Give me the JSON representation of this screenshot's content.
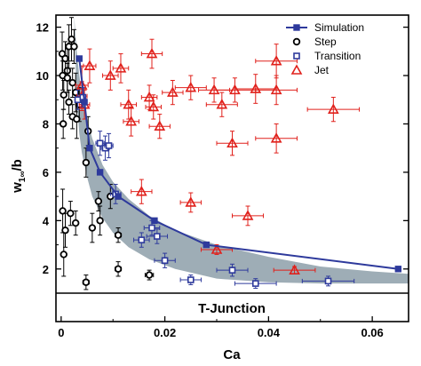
{
  "chart_data": {
    "type": "scatter",
    "xlabel": "Ca",
    "ylabel": "w",
    "ylabel_sub": "1∞",
    "ylabel_tail": "/b",
    "xlim": [
      -0.001,
      0.067
    ],
    "ylim": [
      1,
      12.5
    ],
    "x_ticks": [
      0,
      0.02,
      0.04,
      0.06
    ],
    "x_tick_labels": [
      "0",
      "0.02",
      "0.04",
      "0.06"
    ],
    "y_ticks": [
      2,
      4,
      6,
      8,
      10,
      12
    ],
    "y_tick_labels": [
      "2",
      "4",
      "6",
      "8",
      "10",
      "12"
    ],
    "lower_band_label": "T-Junction",
    "legend_position": "top-right",
    "shaded_band": {
      "x": [
        0.0025,
        0.003,
        0.0035,
        0.004,
        0.005,
        0.006,
        0.008,
        0.01,
        0.013,
        0.017,
        0.022,
        0.03,
        0.04,
        0.05,
        0.06,
        0.067
      ],
      "upper": [
        12.5,
        11.0,
        10.0,
        9.3,
        8.2,
        7.4,
        6.3,
        5.6,
        4.9,
        4.2,
        3.6,
        3.0,
        2.5,
        2.1,
        1.9,
        1.8
      ],
      "lower": [
        12.5,
        9.0,
        7.6,
        6.8,
        5.8,
        5.0,
        4.1,
        3.5,
        2.9,
        2.4,
        2.0,
        1.6,
        1.45,
        1.4,
        1.4,
        1.4
      ]
    },
    "series": [
      {
        "name": "Simulation",
        "marker": "filled-square-line",
        "color": "#2e3a9c",
        "points": [
          [
            0.0035,
            10.7
          ],
          [
            0.0045,
            8.9
          ],
          [
            0.0055,
            7.0
          ],
          [
            0.0075,
            6.0
          ],
          [
            0.011,
            5.0
          ],
          [
            0.018,
            4.0
          ],
          [
            0.028,
            3.0
          ],
          [
            0.065,
            2.0
          ]
        ]
      },
      {
        "name": "Step",
        "marker": "open-circle",
        "color": "#000000",
        "points": [
          {
            "x": 0.0002,
            "y": 10.9,
            "xerr": 0.0004,
            "yerr": 0.9
          },
          {
            "x": 0.0008,
            "y": 10.7,
            "xerr": 0.0004,
            "yerr": 0.7
          },
          {
            "x": 0.0003,
            "y": 10.0,
            "xerr": 0.0004,
            "yerr": 0.6
          },
          {
            "x": 0.0012,
            "y": 10.2,
            "xerr": 0.0004,
            "yerr": 0.9
          },
          {
            "x": 0.0015,
            "y": 11.2,
            "xerr": 0.0004,
            "yerr": 0.9
          },
          {
            "x": 0.002,
            "y": 11.5,
            "xerr": 0.0004,
            "yerr": 0.9
          },
          {
            "x": 0.0025,
            "y": 11.2,
            "xerr": 0.0004,
            "yerr": 0.7
          },
          {
            "x": 0.0012,
            "y": 9.9,
            "xerr": 0.0004,
            "yerr": 0.6
          },
          {
            "x": 0.0022,
            "y": 9.7,
            "xerr": 0.0004,
            "yerr": 0.6
          },
          {
            "x": 0.0005,
            "y": 9.2,
            "xerr": 0.0004,
            "yerr": 0.6
          },
          {
            "x": 0.0015,
            "y": 8.9,
            "xerr": 0.0004,
            "yerr": 0.5
          },
          {
            "x": 0.0028,
            "y": 9.3,
            "xerr": 0.0004,
            "yerr": 0.8
          },
          {
            "x": 0.0022,
            "y": 8.3,
            "xerr": 0.0004,
            "yerr": 0.5
          },
          {
            "x": 0.003,
            "y": 8.2,
            "xerr": 0.0004,
            "yerr": 0.8
          },
          {
            "x": 0.0035,
            "y": 8.8,
            "xerr": 0.0004,
            "yerr": 0.7
          },
          {
            "x": 0.0004,
            "y": 8.0,
            "xerr": 0.0004,
            "yerr": 0.6
          },
          {
            "x": 0.0052,
            "y": 7.7,
            "xerr": 0.0004,
            "yerr": 0.6
          },
          {
            "x": 0.0048,
            "y": 6.4,
            "xerr": 0.0004,
            "yerr": 0.6
          },
          {
            "x": 0.0003,
            "y": 4.4,
            "xerr": 0.0004,
            "yerr": 0.9
          },
          {
            "x": 0.0008,
            "y": 3.6,
            "xerr": 0.0004,
            "yerr": 0.7
          },
          {
            "x": 0.0018,
            "y": 4.3,
            "xerr": 0.0004,
            "yerr": 0.5
          },
          {
            "x": 0.0028,
            "y": 3.9,
            "xerr": 0.0004,
            "yerr": 0.5
          },
          {
            "x": 0.0005,
            "y": 2.6,
            "xerr": 0.0004,
            "yerr": 0.9
          },
          {
            "x": 0.006,
            "y": 3.7,
            "xerr": 0.0004,
            "yerr": 0.6
          },
          {
            "x": 0.0075,
            "y": 4.0,
            "xerr": 0.0004,
            "yerr": 0.6
          },
          {
            "x": 0.0072,
            "y": 4.8,
            "xerr": 0.0004,
            "yerr": 0.4
          },
          {
            "x": 0.0095,
            "y": 5.0,
            "xerr": 0.0004,
            "yerr": 0.5
          },
          {
            "x": 0.011,
            "y": 3.4,
            "xerr": 0.0006,
            "yerr": 0.3
          },
          {
            "x": 0.0048,
            "y": 1.45,
            "xerr": 0.0006,
            "yerr": 0.3
          },
          {
            "x": 0.011,
            "y": 2.0,
            "xerr": 0.0006,
            "yerr": 0.3
          },
          {
            "x": 0.017,
            "y": 1.75,
            "xerr": 0.0008,
            "yerr": 0.2
          }
        ]
      },
      {
        "name": "Transition",
        "marker": "open-square",
        "color": "#2e3a9c",
        "points": [
          {
            "x": 0.0032,
            "y": 9.0,
            "xerr": 0.0005,
            "yerr": 0.4
          },
          {
            "x": 0.0042,
            "y": 9.1,
            "xerr": 0.0005,
            "yerr": 0.4
          },
          {
            "x": 0.0075,
            "y": 7.2,
            "xerr": 0.0008,
            "yerr": 0.5
          },
          {
            "x": 0.0085,
            "y": 7.0,
            "xerr": 0.0008,
            "yerr": 0.5
          },
          {
            "x": 0.0092,
            "y": 7.1,
            "xerr": 0.0008,
            "yerr": 0.5
          },
          {
            "x": 0.0105,
            "y": 5.1,
            "xerr": 0.001,
            "yerr": 0.4
          },
          {
            "x": 0.0155,
            "y": 3.2,
            "xerr": 0.0015,
            "yerr": 0.3
          },
          {
            "x": 0.0175,
            "y": 3.7,
            "xerr": 0.0015,
            "yerr": 0.3
          },
          {
            "x": 0.0185,
            "y": 3.35,
            "xerr": 0.002,
            "yerr": 0.3
          },
          {
            "x": 0.02,
            "y": 2.35,
            "xerr": 0.002,
            "yerr": 0.3
          },
          {
            "x": 0.025,
            "y": 1.55,
            "xerr": 0.002,
            "yerr": 0.2
          },
          {
            "x": 0.033,
            "y": 1.95,
            "xerr": 0.003,
            "yerr": 0.25
          },
          {
            "x": 0.0375,
            "y": 1.4,
            "xerr": 0.004,
            "yerr": 0.2
          },
          {
            "x": 0.0515,
            "y": 1.5,
            "xerr": 0.005,
            "yerr": 0.2
          }
        ]
      },
      {
        "name": "Jet",
        "marker": "open-triangle",
        "color": "#e0201b",
        "points": [
          {
            "x": 0.004,
            "y": 9.6,
            "xerr": 0.0012,
            "yerr": 0.8
          },
          {
            "x": 0.004,
            "y": 9.15,
            "xerr": 0.001,
            "yerr": 0.6
          },
          {
            "x": 0.0045,
            "y": 8.8,
            "xerr": 0.001,
            "yerr": 0.6
          },
          {
            "x": 0.0055,
            "y": 10.4,
            "xerr": 0.0012,
            "yerr": 0.7
          },
          {
            "x": 0.0095,
            "y": 10.0,
            "xerr": 0.0015,
            "yerr": 0.6
          },
          {
            "x": 0.0115,
            "y": 10.3,
            "xerr": 0.0015,
            "yerr": 0.6
          },
          {
            "x": 0.013,
            "y": 8.8,
            "xerr": 0.0015,
            "yerr": 0.6
          },
          {
            "x": 0.0135,
            "y": 8.1,
            "xerr": 0.0015,
            "yerr": 0.6
          },
          {
            "x": 0.0175,
            "y": 10.9,
            "xerr": 0.002,
            "yerr": 0.6
          },
          {
            "x": 0.017,
            "y": 9.1,
            "xerr": 0.0015,
            "yerr": 0.5
          },
          {
            "x": 0.0178,
            "y": 8.7,
            "xerr": 0.0015,
            "yerr": 0.5
          },
          {
            "x": 0.019,
            "y": 7.9,
            "xerr": 0.002,
            "yerr": 0.5
          },
          {
            "x": 0.0215,
            "y": 9.3,
            "xerr": 0.002,
            "yerr": 0.5
          },
          {
            "x": 0.025,
            "y": 9.5,
            "xerr": 0.003,
            "yerr": 0.5
          },
          {
            "x": 0.0295,
            "y": 9.4,
            "xerr": 0.003,
            "yerr": 0.5
          },
          {
            "x": 0.031,
            "y": 8.8,
            "xerr": 0.003,
            "yerr": 0.5
          },
          {
            "x": 0.0335,
            "y": 9.4,
            "xerr": 0.004,
            "yerr": 0.5
          },
          {
            "x": 0.0375,
            "y": 9.45,
            "xerr": 0.004,
            "yerr": 0.6
          },
          {
            "x": 0.0415,
            "y": 10.6,
            "xerr": 0.004,
            "yerr": 0.7
          },
          {
            "x": 0.0415,
            "y": 9.4,
            "xerr": 0.004,
            "yerr": 0.6
          },
          {
            "x": 0.0415,
            "y": 7.4,
            "xerr": 0.004,
            "yerr": 0.6
          },
          {
            "x": 0.033,
            "y": 7.2,
            "xerr": 0.003,
            "yerr": 0.5
          },
          {
            "x": 0.0525,
            "y": 8.6,
            "xerr": 0.005,
            "yerr": 0.5
          },
          {
            "x": 0.0155,
            "y": 5.2,
            "xerr": 0.002,
            "yerr": 0.5
          },
          {
            "x": 0.025,
            "y": 4.75,
            "xerr": 0.002,
            "yerr": 0.4
          },
          {
            "x": 0.036,
            "y": 4.2,
            "xerr": 0.003,
            "yerr": 0.4
          },
          {
            "x": 0.03,
            "y": 2.8,
            "xerr": 0.003,
            "yerr": 0.2
          },
          {
            "x": 0.045,
            "y": 1.95,
            "xerr": 0.004,
            "yerr": 0.15
          }
        ]
      }
    ]
  }
}
